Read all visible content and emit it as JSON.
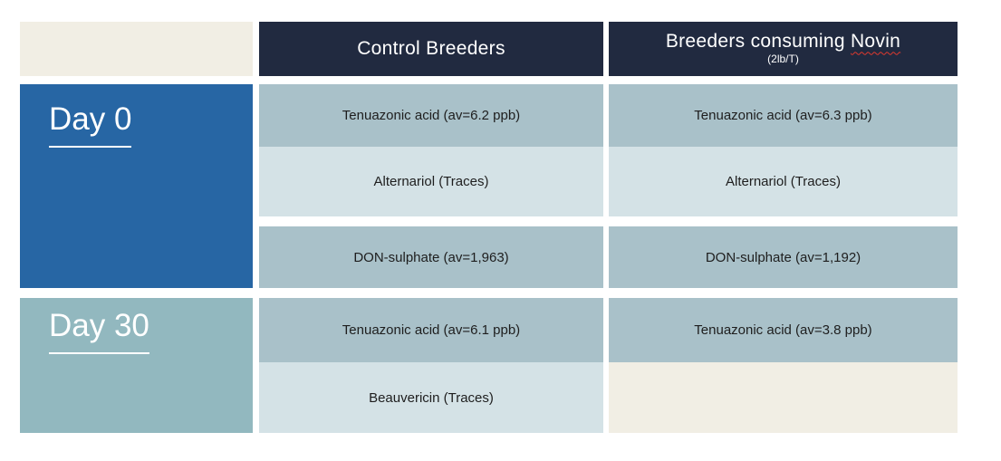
{
  "colors": {
    "navy": "#212A40",
    "cream": "#F1EEE4",
    "day0_blue": "#2766A4",
    "day30_teal": "#92B8BF",
    "cell_medium": "#A9C1C9",
    "cell_light": "#D4E2E6",
    "text_dark": "#1E1E1E",
    "white": "#FFFFFF",
    "squiggle_red": "#E0392E"
  },
  "header": {
    "control_label": "Control Breeders",
    "novin_prefix": "Breeders consuming ",
    "novin_word": "Novin",
    "novin_sub": "(2lb/T)"
  },
  "table": {
    "groups": [
      {
        "label": "Day 0",
        "rows": [
          {
            "control": "Tenuazonic acid (av=6.2 ppb)",
            "novin": "Tenuazonic acid (av=6.3 ppb)",
            "shade": "medium"
          },
          {
            "control": "Alternariol (Traces)",
            "novin": "Alternariol (Traces)",
            "shade": "light"
          },
          {
            "control": "DON-sulphate (av=1,963)",
            "novin": "DON-sulphate (av=1,192)",
            "shade": "medium",
            "gap_before": true
          }
        ]
      },
      {
        "label": "Day 30",
        "rows": [
          {
            "control": "Tenuazonic acid (av=6.1 ppb)",
            "novin": "Tenuazonic acid (av=3.8 ppb)",
            "shade": "medium"
          },
          {
            "control": "Beauvericin (Traces)",
            "novin": "",
            "shade": "light",
            "novin_empty": true
          }
        ]
      }
    ]
  }
}
